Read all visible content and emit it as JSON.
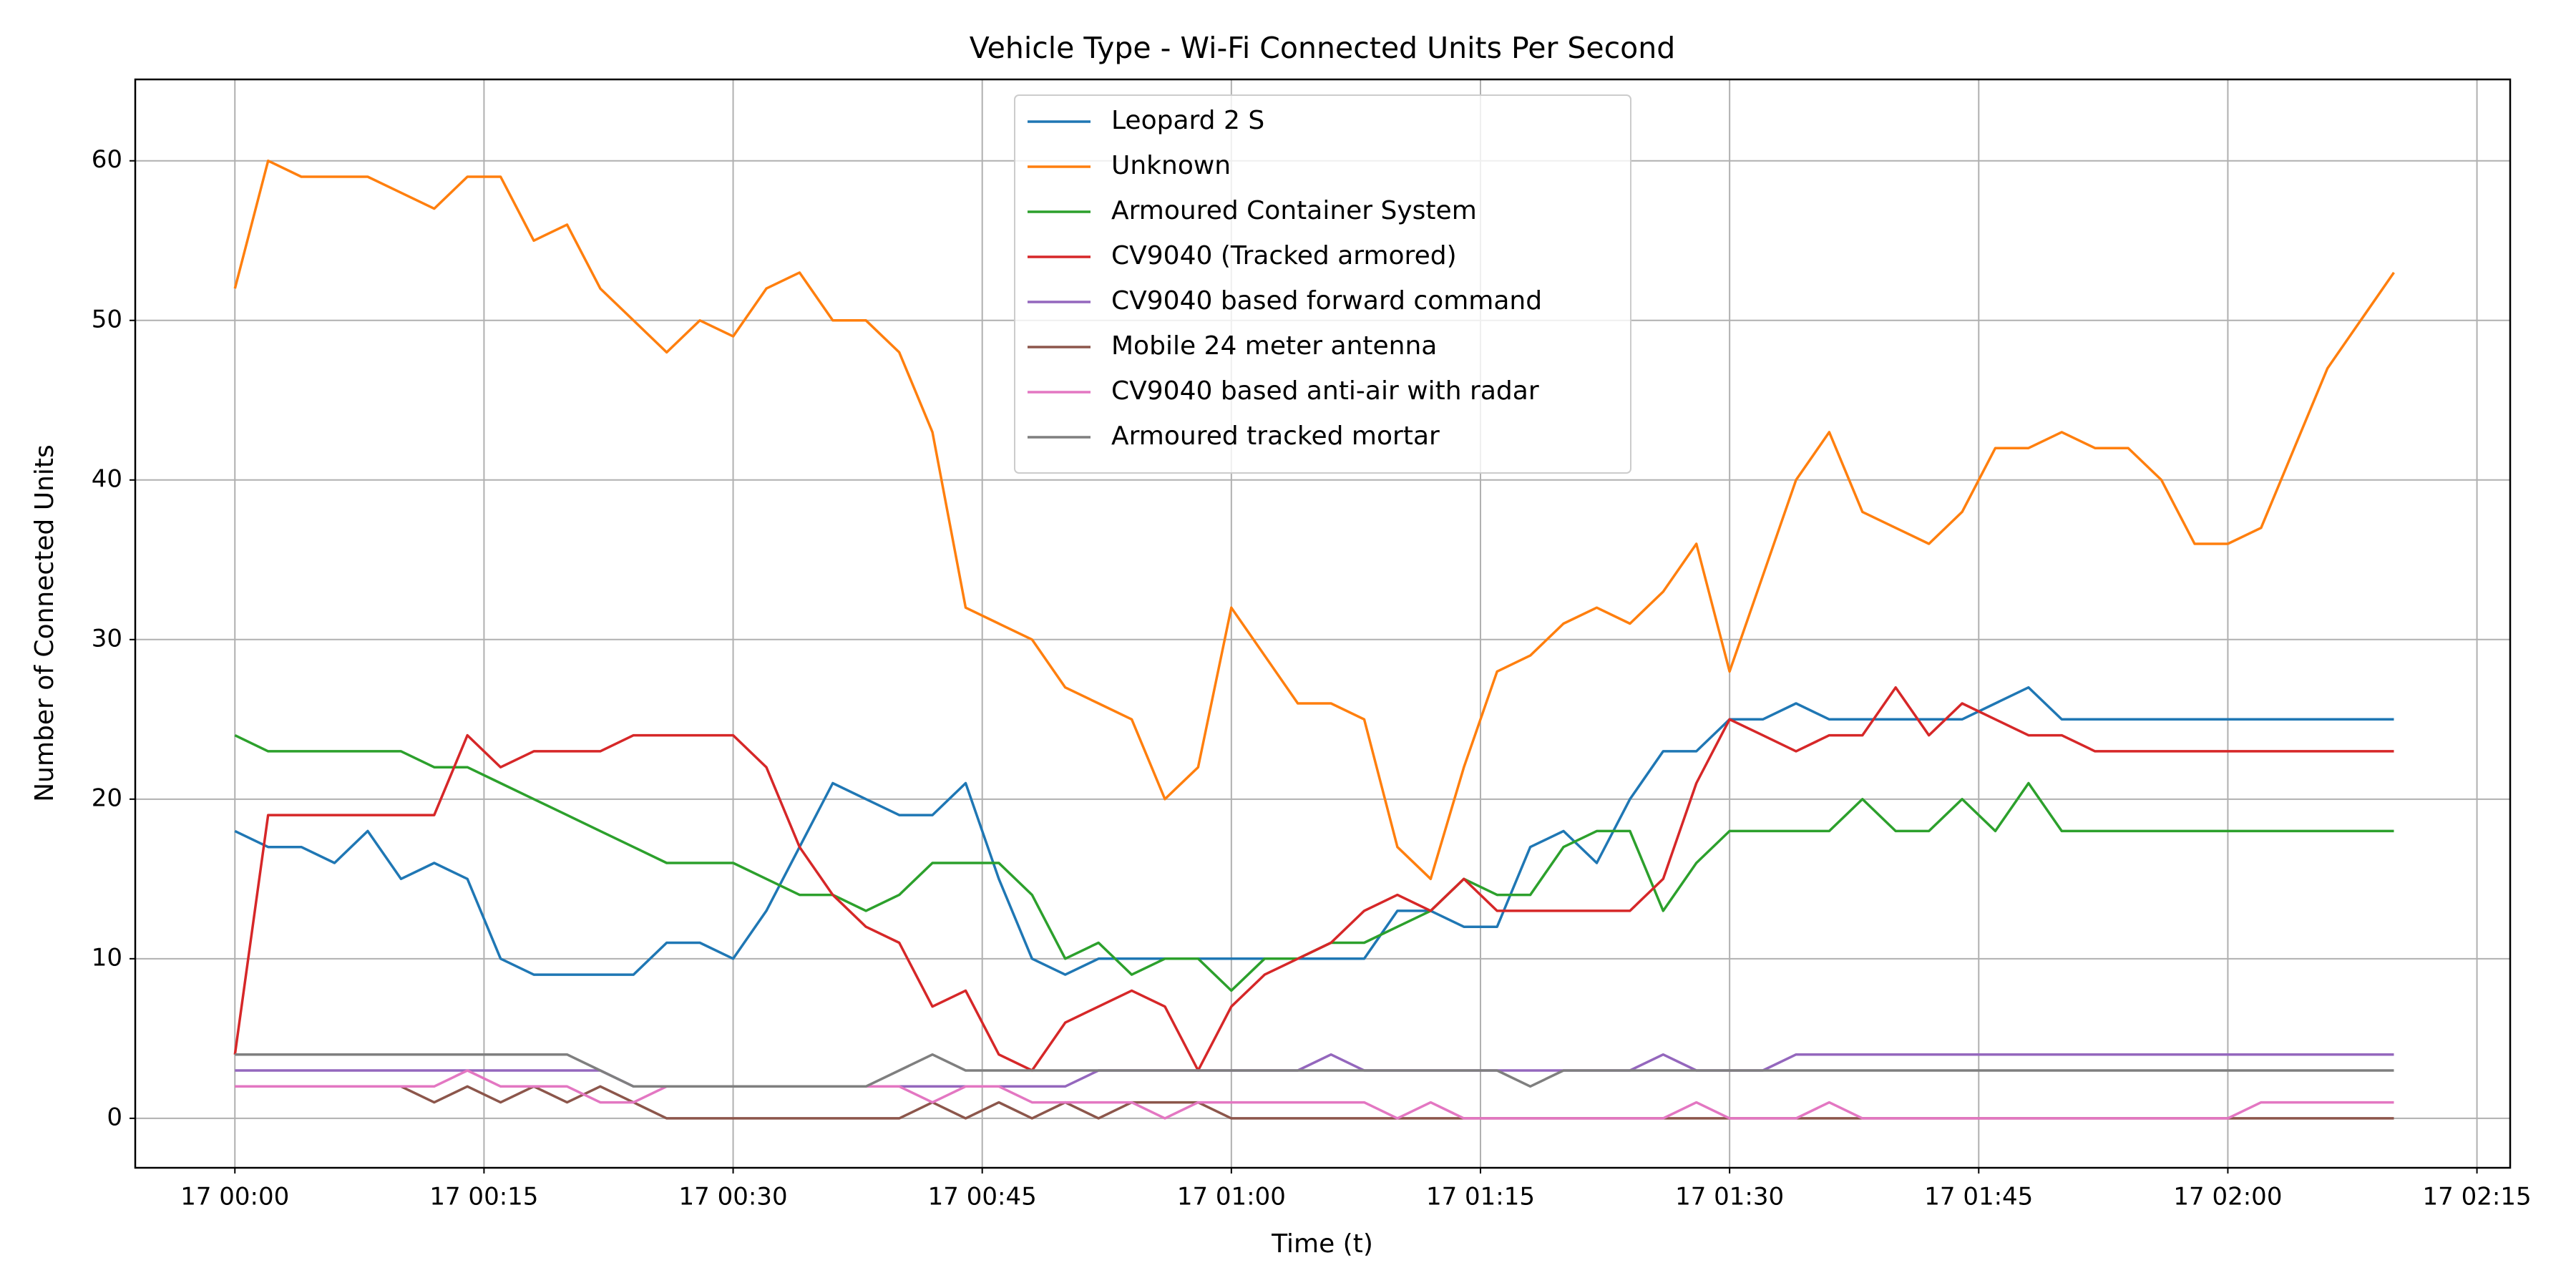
{
  "chart_data": {
    "type": "line",
    "title": "Vehicle Type - Wi-Fi Connected Units Per Second",
    "x_label": "Time (t)",
    "y_label": "Number of Connected Units",
    "x": [
      "17 00:00",
      "17 00:02",
      "17 00:04",
      "17 00:06",
      "17 00:08",
      "17 00:10",
      "17 00:12",
      "17 00:14",
      "17 00:16",
      "17 00:18",
      "17 00:20",
      "17 00:22",
      "17 00:24",
      "17 00:26",
      "17 00:28",
      "17 00:30",
      "17 00:32",
      "17 00:34",
      "17 00:36",
      "17 00:38",
      "17 00:40",
      "17 00:42",
      "17 00:44",
      "17 00:46",
      "17 00:48",
      "17 00:50",
      "17 00:52",
      "17 00:54",
      "17 00:56",
      "17 00:58",
      "17 01:00",
      "17 01:02",
      "17 01:04",
      "17 01:06",
      "17 01:08",
      "17 01:10",
      "17 01:12",
      "17 01:14",
      "17 01:16",
      "17 01:18",
      "17 01:20",
      "17 01:22",
      "17 01:24",
      "17 01:26",
      "17 01:28",
      "17 01:30",
      "17 01:32",
      "17 01:34",
      "17 01:36",
      "17 01:38",
      "17 01:40",
      "17 01:42",
      "17 01:44",
      "17 01:46",
      "17 01:48",
      "17 01:50",
      "17 01:52",
      "17 01:54",
      "17 01:56",
      "17 01:58",
      "17 02:00",
      "17 02:02",
      "17 02:04",
      "17 02:06",
      "17 02:08",
      "17 02:10"
    ],
    "series": [
      {
        "name": "Leopard 2 S",
        "color": "#1f77b4",
        "values": [
          18,
          17,
          17,
          16,
          18,
          15,
          16,
          15,
          10,
          9,
          9,
          9,
          9,
          11,
          11,
          10,
          13,
          17,
          21,
          20,
          19,
          19,
          21,
          15,
          10,
          9,
          10,
          10,
          10,
          10,
          10,
          10,
          10,
          10,
          10,
          13,
          13,
          12,
          12,
          17,
          18,
          16,
          20,
          23,
          23,
          25,
          25,
          26,
          25,
          25,
          25,
          25,
          25,
          26,
          27,
          25,
          25,
          25,
          25,
          25,
          25,
          25,
          25,
          25,
          25,
          25
        ]
      },
      {
        "name": "Unknown",
        "color": "#ff7f0e",
        "values": [
          52,
          60,
          59,
          59,
          59,
          58,
          57,
          59,
          59,
          55,
          56,
          52,
          50,
          48,
          50,
          49,
          52,
          53,
          50,
          50,
          48,
          43,
          32,
          31,
          30,
          27,
          26,
          25,
          20,
          22,
          32,
          29,
          26,
          26,
          25,
          17,
          15,
          22,
          28,
          29,
          31,
          32,
          31,
          33,
          36,
          28,
          34,
          40,
          43,
          38,
          37,
          36,
          38,
          42,
          42,
          43,
          42,
          42,
          40,
          36,
          36,
          37,
          42,
          47,
          50,
          53
        ]
      },
      {
        "name": "Armoured Container System",
        "color": "#2ca02c",
        "values": [
          24,
          23,
          23,
          23,
          23,
          23,
          22,
          22,
          21,
          20,
          19,
          18,
          17,
          16,
          16,
          16,
          15,
          14,
          14,
          13,
          14,
          16,
          16,
          16,
          14,
          10,
          11,
          9,
          10,
          10,
          8,
          10,
          10,
          11,
          11,
          12,
          13,
          15,
          14,
          14,
          17,
          18,
          18,
          13,
          16,
          18,
          18,
          18,
          18,
          20,
          18,
          18,
          20,
          18,
          21,
          18,
          18,
          18,
          18,
          18,
          18,
          18,
          18,
          18,
          18,
          18
        ]
      },
      {
        "name": "CV9040 (Tracked armored)",
        "color": "#d62728",
        "values": [
          4,
          19,
          19,
          19,
          19,
          19,
          19,
          24,
          22,
          23,
          23,
          23,
          24,
          24,
          24,
          24,
          22,
          17,
          14,
          12,
          11,
          7,
          8,
          4,
          3,
          6,
          7,
          8,
          7,
          3,
          7,
          9,
          10,
          11,
          13,
          14,
          13,
          15,
          13,
          13,
          13,
          13,
          13,
          15,
          21,
          25,
          24,
          23,
          24,
          24,
          27,
          24,
          26,
          25,
          24,
          24,
          23,
          23,
          23,
          23,
          23,
          23,
          23,
          23,
          23,
          23
        ]
      },
      {
        "name": "CV9040 based forward command",
        "color": "#9467bd",
        "values": [
          3,
          3,
          3,
          3,
          3,
          3,
          3,
          3,
          3,
          3,
          3,
          3,
          2,
          2,
          2,
          2,
          2,
          2,
          2,
          2,
          2,
          2,
          2,
          2,
          2,
          2,
          3,
          3,
          3,
          3,
          3,
          3,
          3,
          4,
          3,
          3,
          3,
          3,
          3,
          3,
          3,
          3,
          3,
          4,
          3,
          3,
          3,
          4,
          4,
          4,
          4,
          4,
          4,
          4,
          4,
          4,
          4,
          4,
          4,
          4,
          4,
          4,
          4,
          4,
          4,
          4
        ]
      },
      {
        "name": "Mobile 24 meter antenna",
        "color": "#8c564b",
        "values": [
          2,
          2,
          2,
          2,
          2,
          2,
          1,
          2,
          1,
          2,
          1,
          2,
          1,
          0,
          0,
          0,
          0,
          0,
          0,
          0,
          0,
          1,
          0,
          1,
          0,
          1,
          0,
          1,
          1,
          1,
          0,
          0,
          0,
          0,
          0,
          0,
          0,
          0,
          0,
          0,
          0,
          0,
          0,
          0,
          0,
          0,
          0,
          0,
          0,
          0,
          0,
          0,
          0,
          0,
          0,
          0,
          0,
          0,
          0,
          0,
          0,
          0,
          0,
          0,
          0,
          0
        ]
      },
      {
        "name": "CV9040 based anti-air with radar",
        "color": "#e377c2",
        "values": [
          2,
          2,
          2,
          2,
          2,
          2,
          2,
          3,
          2,
          2,
          2,
          1,
          1,
          2,
          2,
          2,
          2,
          2,
          2,
          2,
          2,
          1,
          2,
          2,
          1,
          1,
          1,
          1,
          0,
          1,
          1,
          1,
          1,
          1,
          1,
          0,
          1,
          0,
          0,
          0,
          0,
          0,
          0,
          0,
          1,
          0,
          0,
          0,
          1,
          0,
          0,
          0,
          0,
          0,
          0,
          0,
          0,
          0,
          0,
          0,
          0,
          1,
          1,
          1,
          1,
          1
        ]
      },
      {
        "name": "Armoured tracked mortar",
        "color": "#7f7f7f",
        "values": [
          4,
          4,
          4,
          4,
          4,
          4,
          4,
          4,
          4,
          4,
          4,
          3,
          2,
          2,
          2,
          2,
          2,
          2,
          2,
          2,
          3,
          4,
          3,
          3,
          3,
          3,
          3,
          3,
          3,
          3,
          3,
          3,
          3,
          3,
          3,
          3,
          3,
          3,
          3,
          2,
          3,
          3,
          3,
          3,
          3,
          3,
          3,
          3,
          3,
          3,
          3,
          3,
          3,
          3,
          3,
          3,
          3,
          3,
          3,
          3,
          3,
          3,
          3,
          3,
          3,
          3
        ]
      }
    ],
    "xlim": [
      "16 23:54",
      "17 02:17"
    ],
    "xticks": [
      "17 00:00",
      "17 00:15",
      "17 00:30",
      "17 00:45",
      "17 01:00",
      "17 01:15",
      "17 01:30",
      "17 01:45",
      "17 02:00",
      "17 02:15"
    ],
    "ylim": [
      -3.1,
      65.1
    ],
    "yticks": [
      0,
      10,
      20,
      30,
      40,
      50,
      60
    ],
    "grid": true,
    "legend": "upper center"
  }
}
